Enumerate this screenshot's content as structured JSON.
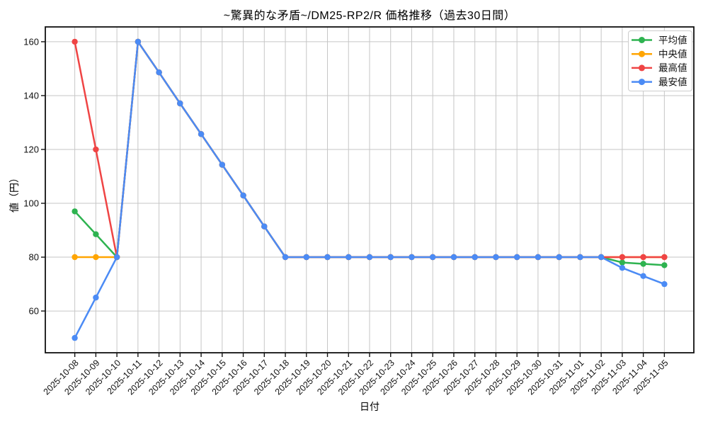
{
  "chart_data": {
    "type": "line",
    "title": "~驚異的な矛盾~/DM25-RP2/R 価格推移（過去30日間）",
    "xlabel": "日付",
    "ylabel": "値（円）",
    "x_categories": [
      "2025-10-08",
      "2025-10-09",
      "2025-10-10",
      "2025-10-11",
      "2025-10-12",
      "2025-10-13",
      "2025-10-14",
      "2025-10-15",
      "2025-10-16",
      "2025-10-17",
      "2025-10-18",
      "2025-10-19",
      "2025-10-20",
      "2025-10-21",
      "2025-10-22",
      "2025-10-23",
      "2025-10-24",
      "2025-10-25",
      "2025-10-26",
      "2025-10-27",
      "2025-10-28",
      "2025-10-29",
      "2025-10-30",
      "2025-10-31",
      "2025-11-01",
      "2025-11-02",
      "2025-11-03",
      "2025-11-04",
      "2025-11-05"
    ],
    "series": [
      {
        "key": "average",
        "name": "平均値",
        "color": "#2eb350",
        "values": [
          97,
          88.5,
          80,
          160,
          148.6,
          137.1,
          125.7,
          114.3,
          102.9,
          91.4,
          80,
          80,
          80,
          80,
          80,
          80,
          80,
          80,
          80,
          80,
          80,
          80,
          80,
          80,
          80,
          80,
          78,
          77.5,
          77
        ]
      },
      {
        "key": "median",
        "name": "中央値",
        "color": "#ffa502",
        "values": [
          80,
          80,
          80,
          160,
          148.6,
          137.1,
          125.7,
          114.3,
          102.9,
          91.4,
          80,
          80,
          80,
          80,
          80,
          80,
          80,
          80,
          80,
          80,
          80,
          80,
          80,
          80,
          80,
          80,
          80,
          80,
          80
        ]
      },
      {
        "key": "max",
        "name": "最高値",
        "color": "#ef4444",
        "values": [
          160,
          120,
          80,
          160,
          148.6,
          137.1,
          125.7,
          114.3,
          102.9,
          91.4,
          80,
          80,
          80,
          80,
          80,
          80,
          80,
          80,
          80,
          80,
          80,
          80,
          80,
          80,
          80,
          80,
          80,
          80,
          80
        ]
      },
      {
        "key": "min",
        "name": "最安値",
        "color": "#4b8bf5",
        "values": [
          50,
          65,
          80,
          160,
          148.6,
          137.1,
          125.7,
          114.3,
          102.9,
          91.4,
          80,
          80,
          80,
          80,
          80,
          80,
          80,
          80,
          80,
          80,
          80,
          80,
          80,
          80,
          80,
          80,
          76,
          73,
          70
        ]
      }
    ],
    "ylim": [
      44.5,
      165.5
    ],
    "yticks": [
      60,
      80,
      100,
      120,
      140,
      160
    ],
    "grid": true,
    "legend_position": "upper right",
    "marker": "circle"
  },
  "colors": {
    "background": "#ffffff",
    "grid": "#c6c6c6",
    "spine": "#111111",
    "tick_text": "#111111",
    "legend_border": "#cccccc",
    "legend_bg": "#ffffff"
  }
}
